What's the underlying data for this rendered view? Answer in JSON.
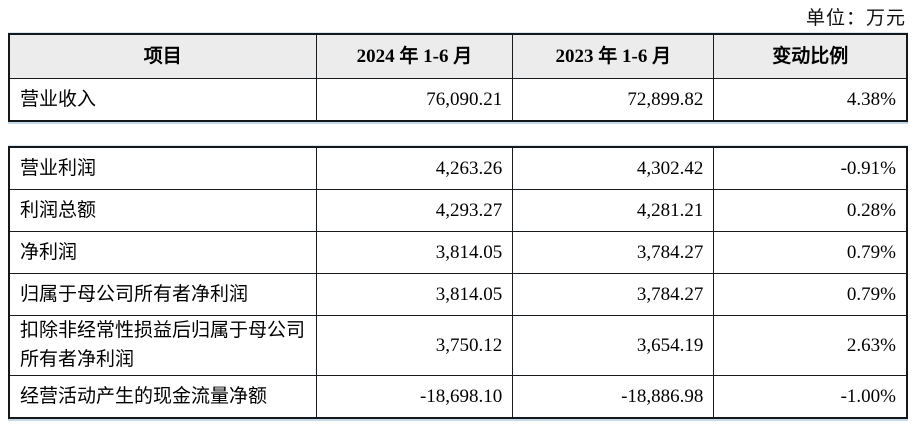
{
  "page": {
    "unit_label": "单位：万元"
  },
  "colors": {
    "header_bg": "#ececec",
    "border": "#191c1f",
    "text": "#000000",
    "table_edge_glow": "#96b9d7"
  },
  "table": {
    "headers": {
      "item": "项目",
      "period_2024": "2024 年 1-6 月",
      "period_2023": "2023 年 1-6 月",
      "change": "变动比例"
    },
    "revenue_row": {
      "label": "营业收入",
      "v2024": "76,090.21",
      "v2023": "72,899.82",
      "change": "4.38%"
    },
    "rows": [
      {
        "label": "营业利润",
        "v2024": "4,263.26",
        "v2023": "4,302.42",
        "change": "-0.91%"
      },
      {
        "label": "利润总额",
        "v2024": "4,293.27",
        "v2023": "4,281.21",
        "change": "0.28%"
      },
      {
        "label": "净利润",
        "v2024": "3,814.05",
        "v2023": "3,784.27",
        "change": "0.79%"
      },
      {
        "label": "归属于母公司所有者净利润",
        "v2024": "3,814.05",
        "v2023": "3,784.27",
        "change": "0.79%"
      },
      {
        "label": "扣除非经常性损益后归属于母公司所有者净利润",
        "v2024": "3,750.12",
        "v2023": "3,654.19",
        "change": "2.63%"
      },
      {
        "label": "经营活动产生的现金流量净额",
        "v2024": "-18,698.10",
        "v2023": "-18,886.98",
        "change": "-1.00%"
      }
    ]
  }
}
